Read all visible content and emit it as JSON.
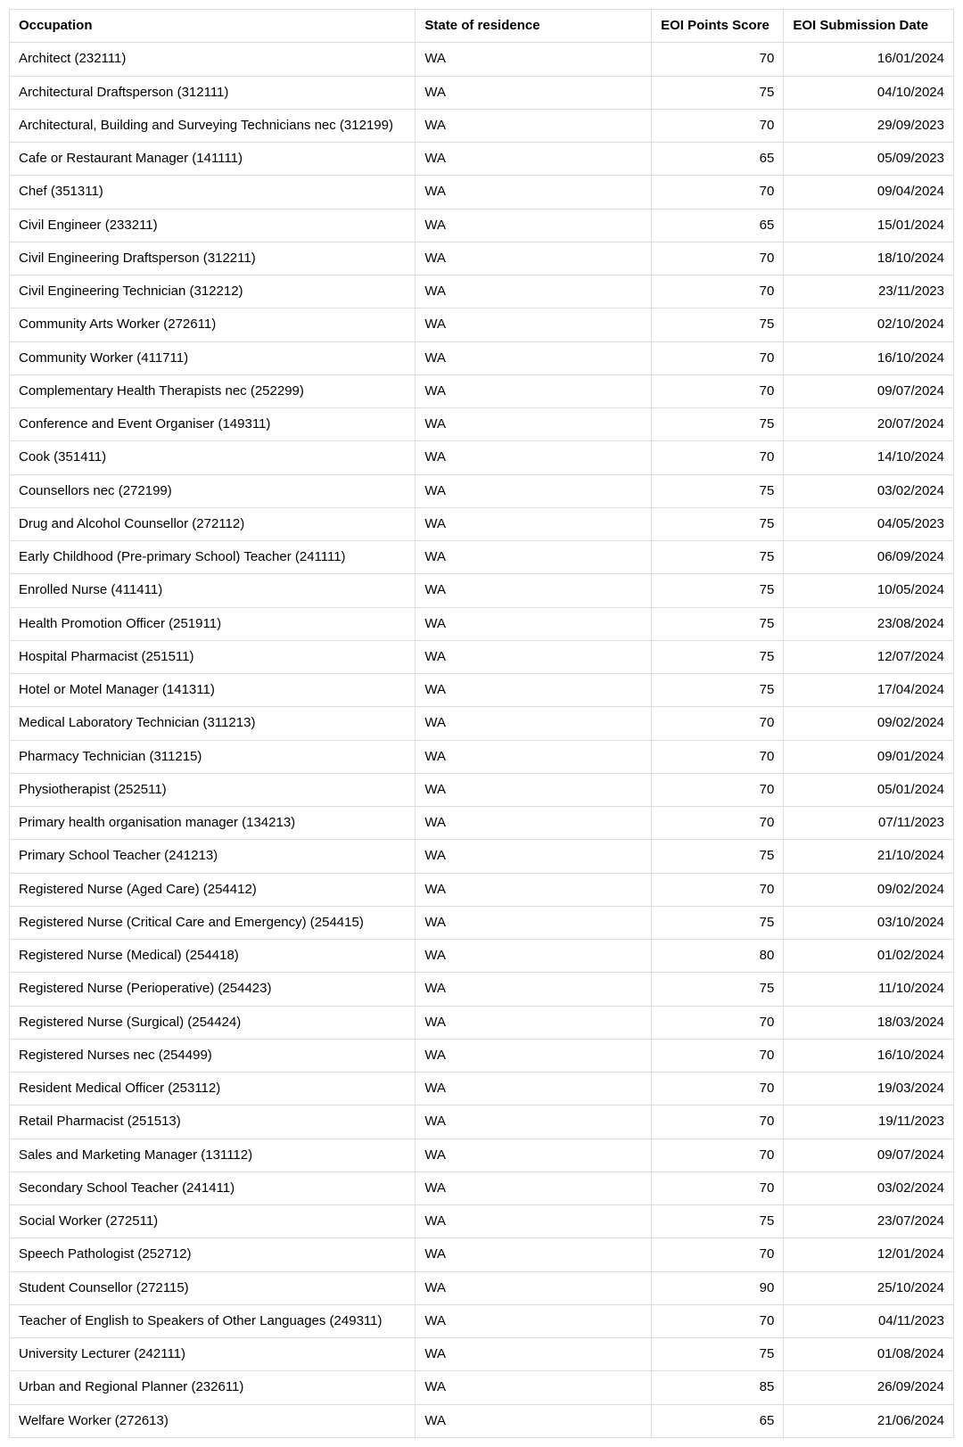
{
  "table": {
    "type": "table",
    "background_color": "#ffffff",
    "border_color": "#dddddd",
    "text_color": "#000000",
    "header_font_weight": 700,
    "body_font_weight": 400,
    "font_family": "Arial",
    "font_size_pt": 11,
    "columns": [
      {
        "key": "occupation",
        "label": "Occupation",
        "width_pct": 43,
        "align": "left"
      },
      {
        "key": "state",
        "label": "State of residence",
        "width_pct": 25,
        "align": "left"
      },
      {
        "key": "score",
        "label": "EOI Points Score",
        "width_pct": 14,
        "align": "right"
      },
      {
        "key": "date",
        "label": "EOI Submission Date",
        "width_pct": 18,
        "align": "right"
      }
    ],
    "rows": [
      {
        "occupation": "Architect (232111)",
        "state": "WA",
        "score": "70",
        "date": "16/01/2024"
      },
      {
        "occupation": "Architectural Draftsperson (312111)",
        "state": "WA",
        "score": "75",
        "date": "04/10/2024"
      },
      {
        "occupation": "Architectural, Building and Surveying Technicians nec (312199)",
        "state": "WA",
        "score": "70",
        "date": "29/09/2023"
      },
      {
        "occupation": "Cafe or Restaurant Manager (141111)",
        "state": "WA",
        "score": "65",
        "date": "05/09/2023"
      },
      {
        "occupation": "Chef (351311)",
        "state": "WA",
        "score": "70",
        "date": "09/04/2024"
      },
      {
        "occupation": "Civil Engineer (233211)",
        "state": "WA",
        "score": "65",
        "date": "15/01/2024"
      },
      {
        "occupation": "Civil Engineering Draftsperson (312211)",
        "state": "WA",
        "score": "70",
        "date": "18/10/2024"
      },
      {
        "occupation": "Civil Engineering Technician (312212)",
        "state": "WA",
        "score": "70",
        "date": "23/11/2023"
      },
      {
        "occupation": "Community Arts Worker (272611)",
        "state": "WA",
        "score": "75",
        "date": "02/10/2024"
      },
      {
        "occupation": "Community Worker (411711)",
        "state": "WA",
        "score": "70",
        "date": "16/10/2024"
      },
      {
        "occupation": "Complementary Health Therapists nec (252299)",
        "state": "WA",
        "score": "70",
        "date": "09/07/2024"
      },
      {
        "occupation": "Conference and Event Organiser (149311)",
        "state": "WA",
        "score": "75",
        "date": "20/07/2024"
      },
      {
        "occupation": "Cook (351411)",
        "state": "WA",
        "score": "70",
        "date": "14/10/2024"
      },
      {
        "occupation": "Counsellors nec (272199)",
        "state": "WA",
        "score": "75",
        "date": "03/02/2024"
      },
      {
        "occupation": "Drug and Alcohol Counsellor (272112)",
        "state": "WA",
        "score": "75",
        "date": "04/05/2023"
      },
      {
        "occupation": "Early Childhood (Pre-primary School) Teacher (241111)",
        "state": "WA",
        "score": "75",
        "date": "06/09/2024"
      },
      {
        "occupation": "Enrolled Nurse (411411)",
        "state": "WA",
        "score": "75",
        "date": "10/05/2024"
      },
      {
        "occupation": "Health Promotion Officer (251911)",
        "state": "WA",
        "score": "75",
        "date": "23/08/2024"
      },
      {
        "occupation": "Hospital Pharmacist (251511)",
        "state": "WA",
        "score": "75",
        "date": "12/07/2024"
      },
      {
        "occupation": "Hotel or Motel Manager (141311)",
        "state": "WA",
        "score": "75",
        "date": "17/04/2024"
      },
      {
        "occupation": "Medical Laboratory Technician (311213)",
        "state": "WA",
        "score": "70",
        "date": "09/02/2024"
      },
      {
        "occupation": "Pharmacy Technician (311215)",
        "state": "WA",
        "score": "70",
        "date": "09/01/2024"
      },
      {
        "occupation": "Physiotherapist (252511)",
        "state": "WA",
        "score": "70",
        "date": "05/01/2024"
      },
      {
        "occupation": "Primary health organisation manager (134213)",
        "state": "WA",
        "score": "70",
        "date": "07/11/2023"
      },
      {
        "occupation": "Primary School Teacher (241213)",
        "state": "WA",
        "score": "75",
        "date": "21/10/2024"
      },
      {
        "occupation": "Registered Nurse (Aged Care) (254412)",
        "state": "WA",
        "score": "70",
        "date": "09/02/2024"
      },
      {
        "occupation": "Registered Nurse (Critical Care and Emergency) (254415)",
        "state": "WA",
        "score": "75",
        "date": "03/10/2024"
      },
      {
        "occupation": "Registered Nurse (Medical) (254418)",
        "state": "WA",
        "score": "80",
        "date": "01/02/2024"
      },
      {
        "occupation": "Registered Nurse (Perioperative) (254423)",
        "state": "WA",
        "score": "75",
        "date": "11/10/2024"
      },
      {
        "occupation": "Registered Nurse (Surgical) (254424)",
        "state": "WA",
        "score": "70",
        "date": "18/03/2024"
      },
      {
        "occupation": "Registered Nurses nec (254499)",
        "state": "WA",
        "score": "70",
        "date": "16/10/2024"
      },
      {
        "occupation": "Resident Medical Officer (253112)",
        "state": "WA",
        "score": "70",
        "date": "19/03/2024"
      },
      {
        "occupation": "Retail Pharmacist (251513)",
        "state": "WA",
        "score": "70",
        "date": "19/11/2023"
      },
      {
        "occupation": "Sales and Marketing Manager (131112)",
        "state": "WA",
        "score": "70",
        "date": "09/07/2024"
      },
      {
        "occupation": "Secondary School Teacher (241411)",
        "state": "WA",
        "score": "70",
        "date": "03/02/2024"
      },
      {
        "occupation": "Social Worker (272511)",
        "state": "WA",
        "score": "75",
        "date": "23/07/2024"
      },
      {
        "occupation": "Speech Pathologist (252712)",
        "state": "WA",
        "score": "70",
        "date": "12/01/2024"
      },
      {
        "occupation": "Student Counsellor (272115)",
        "state": "WA",
        "score": "90",
        "date": "25/10/2024"
      },
      {
        "occupation": "Teacher of English to Speakers of Other Languages (249311)",
        "state": "WA",
        "score": "70",
        "date": "04/11/2023"
      },
      {
        "occupation": "University Lecturer (242111)",
        "state": "WA",
        "score": "75",
        "date": "01/08/2024"
      },
      {
        "occupation": "Urban and Regional Planner (232611)",
        "state": "WA",
        "score": "85",
        "date": "26/09/2024"
      },
      {
        "occupation": "Welfare Worker (272613)",
        "state": "WA",
        "score": "65",
        "date": "21/06/2024"
      }
    ]
  }
}
